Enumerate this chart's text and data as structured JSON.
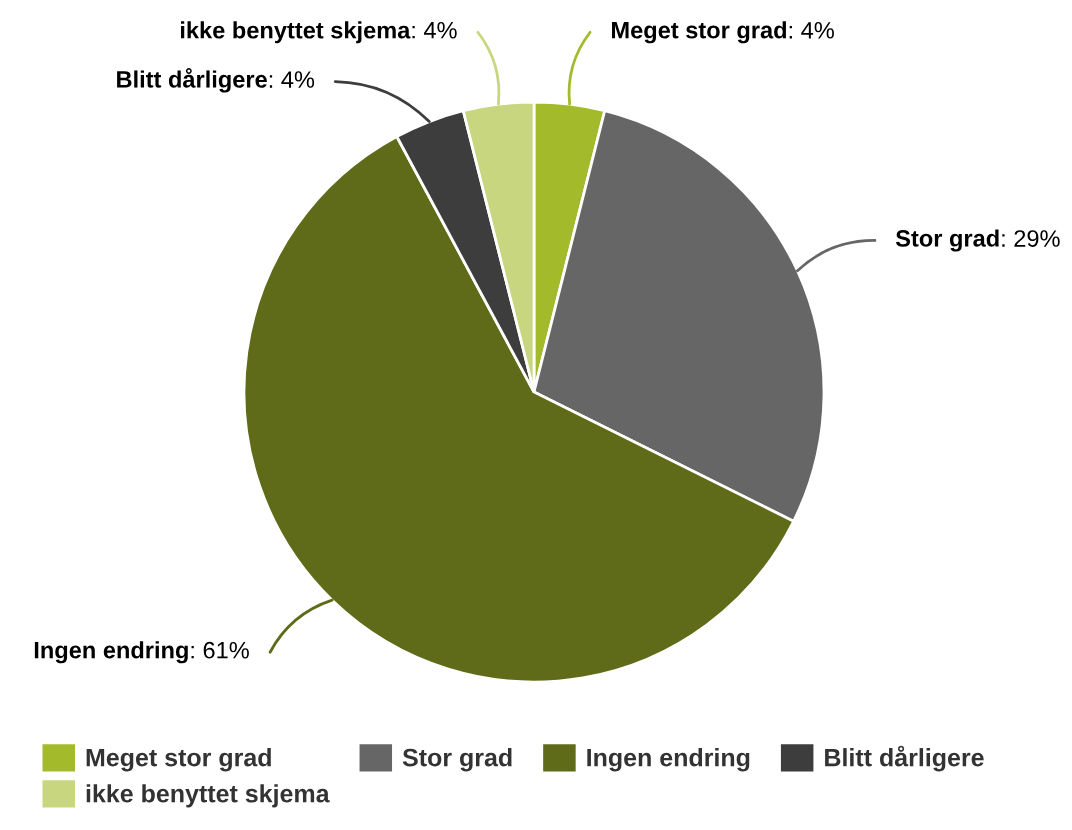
{
  "chart_data": {
    "type": "pie",
    "categories": [
      "Meget stor grad",
      "Stor grad",
      "Ingen endring",
      "Blitt dårligere",
      "ikke benyttet skjema"
    ],
    "values": [
      4,
      29,
      61,
      4,
      4
    ],
    "colors": [
      "#a3bb2b",
      "#666666",
      "#5f6b18",
      "#3d3d3d",
      "#c8d680"
    ],
    "value_labels": [
      ": 4%",
      ": 29%",
      ": 61%",
      ": 4%",
      ": 4%"
    ],
    "legend": "bottom"
  }
}
